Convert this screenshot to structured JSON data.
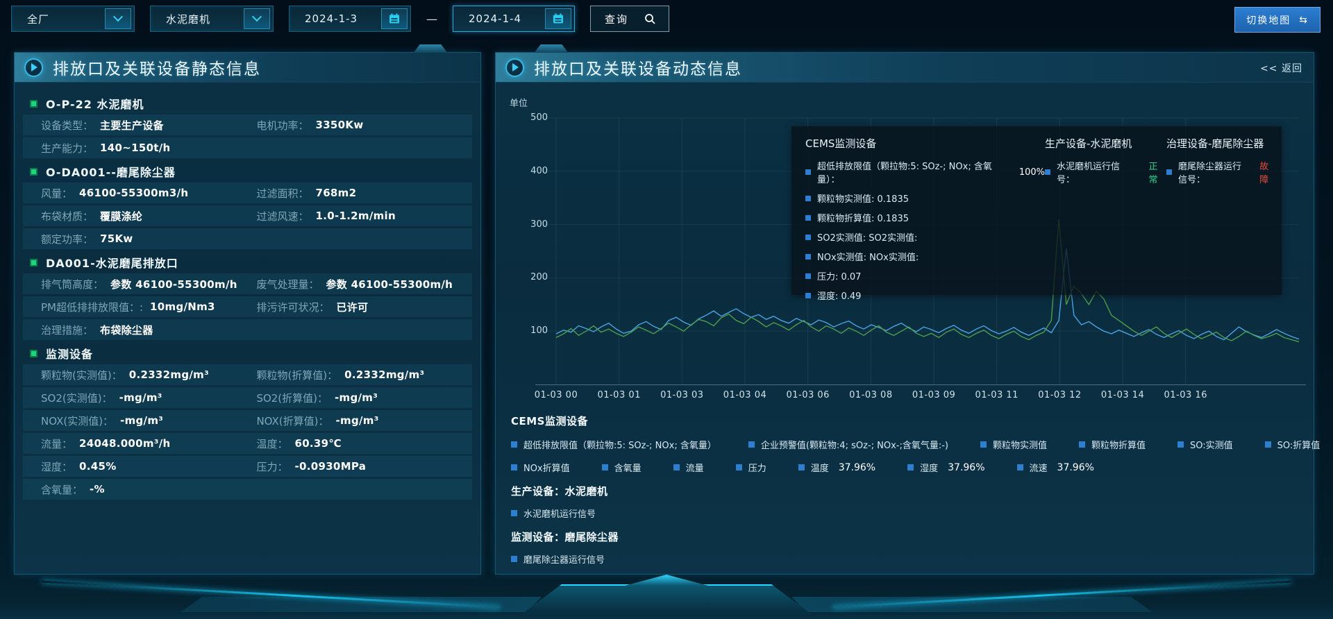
{
  "toolbar": {
    "plant_select": "全厂",
    "device_select": "水泥磨机",
    "date_from": "2024-1-3",
    "date_to": "2024-1-4",
    "separator": "—",
    "query_label": "查询",
    "switch_map_label": "切换地图",
    "swap_icon": "⇆"
  },
  "left_panel": {
    "title": "排放口及关联设备静态信息",
    "sections": [
      {
        "title": "O-P-22 水泥磨机",
        "rows": [
          [
            {
              "label": "设备类型：",
              "value": "主要生产设备"
            },
            {
              "label": "电机功率：",
              "value": "3350Kw"
            }
          ],
          [
            {
              "label": "生产能力：",
              "value": "140~150t/h"
            }
          ]
        ]
      },
      {
        "title": "O-DA001--磨尾除尘器",
        "rows": [
          [
            {
              "label": "风量：",
              "value": "46100-55300m3/h"
            },
            {
              "label": "过滤面积：",
              "value": "768m2"
            }
          ],
          [
            {
              "label": "布袋材质：",
              "value": "覆膜涤纶"
            },
            {
              "label": "过滤风速：",
              "value": "1.0-1.2m/min"
            }
          ],
          [
            {
              "label": "额定功率：",
              "value": "75Kw"
            }
          ]
        ]
      },
      {
        "title": "DA001-水泥磨尾排放口",
        "rows": [
          [
            {
              "label": "排气筒高度：",
              "value": "参数 46100-55300m/h"
            },
            {
              "label": "废气处理量：",
              "value": "参数 46100-55300m/h"
            }
          ],
          [
            {
              "label": "PM超低排排放限值：:",
              "value": "10mg/Nm3"
            },
            {
              "label": "排污许可状况：",
              "value": "已许可"
            }
          ],
          [
            {
              "label": "治理措施：",
              "value": "布袋除尘器"
            }
          ]
        ]
      },
      {
        "title": "监测设备",
        "rows": [
          [
            {
              "label": "颗粒物(实测值)：",
              "value": "0.2332mg/m³"
            },
            {
              "label": "颗粒物(折算值)：",
              "value": "0.2332mg/m³"
            }
          ],
          [
            {
              "label": "SO2(实测值)：",
              "value": "-mg/m³"
            },
            {
              "label": "SO2(折算值)：",
              "value": "-mg/m³"
            }
          ],
          [
            {
              "label": "NOX(实测值)：",
              "value": "-mg/m³"
            },
            {
              "label": "NOX(折算值)：",
              "value": "-mg/m³"
            }
          ],
          [
            {
              "label": "流量：",
              "value": "24048.000m³/h"
            },
            {
              "label": "温度：",
              "value": "60.39℃"
            }
          ],
          [
            {
              "label": "湿度：",
              "value": "0.45%"
            },
            {
              "label": "压力：",
              "value": "-0.0930MPa"
            }
          ],
          [
            {
              "label": "含氧量：",
              "value": "-%"
            }
          ]
        ]
      }
    ]
  },
  "right_panel": {
    "title": "排放口及关联设备动态信息",
    "back_label": "<< 返回",
    "unit_label": "单位",
    "tooltip": {
      "col1_title": "CEMS监测设备",
      "col1_items": [
        {
          "label": "超低排放限值（颗拉物:5: SOz-; NOx; 含氧量）：",
          "value": "100%",
          "gap": true
        },
        {
          "label": "颗粒物实测值: 0.1835",
          "value": ""
        },
        {
          "label": "颗粒物折算值: 0.1835",
          "value": ""
        },
        {
          "label": "SO2实测值: SO2实测值:",
          "value": ""
        },
        {
          "label": "NOx实测值: NOx实测值:",
          "value": ""
        },
        {
          "label": "压力: 0.07",
          "value": ""
        },
        {
          "label": "湿度: 0.49",
          "value": ""
        }
      ],
      "col2_title": "生产设备-水泥磨机",
      "col2_item_label": "水泥磨机运行信号：",
      "col2_item_value": "正常",
      "col3_title": "治理设备-磨尾除尘器",
      "col3_item_label": "磨尾除尘器运行信号：",
      "col3_item_value": "故障"
    },
    "legend": {
      "cems_title": "CEMS监测设备",
      "row1": [
        {
          "label": "超低排放限值（颗拉物:5: SOz-; NOx; 含氧量）"
        },
        {
          "label": "企业预警值(颗粒物:4; sOz-; NOx-;含氧气量:-)"
        },
        {
          "label": "颗粒物实测值"
        },
        {
          "label": "颗粒物折算值"
        },
        {
          "label": "SO:实测值"
        },
        {
          "label": "SO:折算值"
        },
        {
          "label": "NOx实测值"
        }
      ],
      "row2": [
        {
          "label": "NOx折算值"
        },
        {
          "label": "含氧量"
        },
        {
          "label": "流量"
        },
        {
          "label": "压力"
        },
        {
          "label": "温度",
          "value": "37.96%"
        },
        {
          "label": "湿度",
          "value": "37.96%"
        },
        {
          "label": "流速",
          "value": "37.96%"
        }
      ],
      "production_title": "生产设备：水泥磨机",
      "production_item": "水泥磨机运行信号",
      "monitor_title": "监测设备：磨尾除尘器",
      "monitor_item": "磨尾除尘器运行信号"
    }
  },
  "chart_data": {
    "type": "line",
    "title": "排放口及关联设备动态信息",
    "ylabel": "单位",
    "ylim": [
      0,
      500
    ],
    "yticks": [
      100,
      200,
      300,
      400,
      500
    ],
    "xticks": [
      "01-03 00",
      "01-03 01",
      "01-03 03",
      "01-03 04",
      "01-03 06",
      "01-03 08",
      "01-03 09",
      "01-03 11",
      "01-03 12",
      "01-03 14",
      "01-03 16"
    ],
    "grid": true,
    "legend_position": "below",
    "series": [
      {
        "name": "颗粒物实测值",
        "color": "#4ba3e3",
        "values": [
          95,
          102,
          98,
          110,
          105,
          99,
          108,
          115,
          104,
          96,
          100,
          112,
          118,
          109,
          103,
          120,
          126,
          117,
          111,
          123,
          130,
          138,
          128,
          135,
          142,
          133,
          126,
          131,
          122,
          128,
          120,
          115,
          124,
          118,
          112,
          121,
          116,
          108,
          114,
          119,
          110,
          104,
          112,
          107,
          101,
          109,
          115,
          106,
          99,
          108,
          103,
          97,
          105,
          111,
          102,
          96,
          104,
          110,
          101,
          95,
          100,
          107,
          98,
          92,
          99,
          106,
          97,
          120,
          255,
          130,
          112,
          118,
          108,
          100,
          95,
          102,
          96,
          90,
          97,
          103,
          94,
          88,
          95,
          101,
          92,
          86,
          94,
          100,
          90,
          84,
          96,
          108,
          99,
          93,
          88,
          95,
          103,
          96,
          90,
          85
        ]
      },
      {
        "name": "颗粒物折算值",
        "color": "#4f9e4c",
        "values": [
          88,
          95,
          105,
          92,
          100,
          110,
          98,
          104,
          96,
          90,
          98,
          108,
          102,
          95,
          105,
          115,
          108,
          100,
          112,
          122,
          118,
          110,
          125,
          132,
          120,
          114,
          126,
          118,
          108,
          116,
          110,
          102,
          112,
          120,
          108,
          100,
          110,
          104,
          96,
          106,
          100,
          92,
          102,
          110,
          98,
          92,
          100,
          108,
          96,
          90,
          96,
          88,
          98,
          104,
          94,
          88,
          96,
          102,
          92,
          86,
          94,
          100,
          90,
          84,
          92,
          98,
          120,
          310,
          150,
          185,
          170,
          150,
          175,
          160,
          130,
          120,
          110,
          100,
          92,
          100,
          108,
          96,
          88,
          96,
          104,
          94,
          86,
          92,
          98,
          88,
          82,
          90,
          100,
          92,
          86,
          90,
          96,
          88,
          84,
          80
        ]
      }
    ]
  },
  "colors": {
    "accent_cyan": "#37d2f5",
    "ok_green": "#35d08a",
    "alarm_red": "#e84b3c",
    "legend_blue": "#2f7fd1",
    "map_button_blue": "#2b7ed2"
  }
}
